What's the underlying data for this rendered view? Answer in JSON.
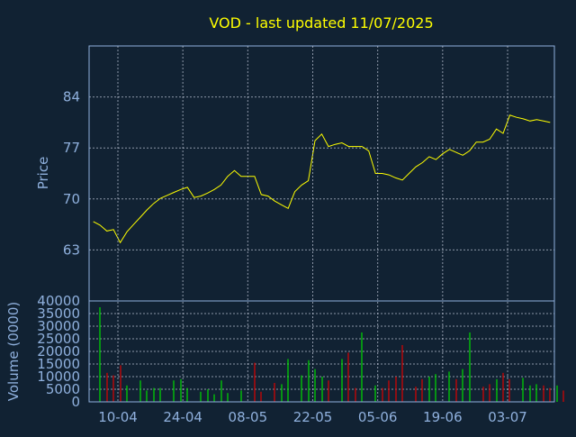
{
  "chart_data": [
    {
      "type": "line",
      "title": "VOD - last updated 11/07/2025",
      "ylabel": "Price",
      "ylim": [
        56,
        91
      ],
      "yticks": [
        63,
        70,
        77,
        84
      ],
      "grid": true,
      "line_color": "#ffff00",
      "x_tick_labels": [
        "10-04",
        "24-04",
        "08-05",
        "22-05",
        "05-06",
        "19-06",
        "03-07"
      ],
      "series": [
        {
          "values": [
            66.9,
            66.4,
            65.6,
            65.8,
            64.0,
            65.5,
            66.5,
            67.5,
            68.5,
            69.4,
            70.1,
            70.5,
            70.9,
            71.3,
            71.6,
            70.2,
            70.4,
            70.8,
            71.3,
            71.9,
            73.1,
            73.9,
            73.1,
            73.1,
            73.1,
            70.6,
            70.4,
            69.7,
            69.2,
            68.7,
            71.0,
            71.9,
            72.5,
            78.0,
            78.9,
            77.2,
            77.5,
            77.7,
            77.2,
            77.2,
            77.2,
            76.6,
            73.5,
            73.5,
            73.3,
            72.9,
            72.6,
            73.5,
            74.4,
            75.0,
            75.8,
            75.4,
            76.2,
            76.8,
            76.4,
            76.0,
            76.6,
            77.8,
            77.8,
            78.2,
            79.6,
            79.0,
            81.5,
            81.2,
            81.0,
            80.7,
            80.9,
            80.7,
            80.5
          ]
        }
      ]
    },
    {
      "type": "bar",
      "ylabel": "Volume (0000)",
      "ylim": [
        0,
        40000
      ],
      "yticks": [
        0,
        5000,
        10000,
        15000,
        20000,
        25000,
        30000,
        35000,
        40000
      ],
      "grid": true,
      "up_color": "#00dd00",
      "down_color": "#dd0000",
      "series": [
        {
          "name": "",
          "values": [
            0,
            37500,
            11500,
            10500,
            14500,
            6500,
            0,
            8500,
            4500,
            5500,
            5500,
            0,
            8500,
            9000,
            5500,
            0,
            4000,
            5000,
            3000,
            8500,
            3500,
            0,
            4500,
            0,
            15500,
            4000,
            0,
            7500,
            7000,
            17000,
            0,
            10500,
            16500,
            13000,
            10000,
            8500,
            0,
            17000,
            19500,
            5500,
            27500,
            0,
            6500,
            5500,
            8500,
            10000,
            22500,
            0,
            6000,
            9000,
            10000,
            11000,
            0,
            12000,
            9000,
            13000,
            27500,
            0,
            6000,
            7000,
            9000,
            11500,
            9000,
            0,
            9500,
            6500,
            7000,
            6500,
            5500,
            6500,
            4500
          ],
          "direction": [
            "",
            "up",
            "down",
            "down",
            "down",
            "up",
            "",
            "up",
            "up",
            "up",
            "up",
            "",
            "up",
            "up",
            "up",
            "",
            "up",
            "up",
            "up",
            "up",
            "up",
            "",
            "up",
            "",
            "down",
            "down",
            "",
            "down",
            "up",
            "up",
            "",
            "up",
            "up",
            "up",
            "up",
            "down",
            "",
            "up",
            "down",
            "down",
            "up",
            "",
            "up",
            "down",
            "down",
            "down",
            "down",
            "",
            "down",
            "down",
            "up",
            "up",
            "",
            "up",
            "down",
            "up",
            "up",
            "",
            "down",
            "down",
            "up",
            "down",
            "down",
            "",
            "up",
            "up",
            "up",
            "down",
            "down",
            "up",
            "down"
          ]
        }
      ]
    }
  ]
}
